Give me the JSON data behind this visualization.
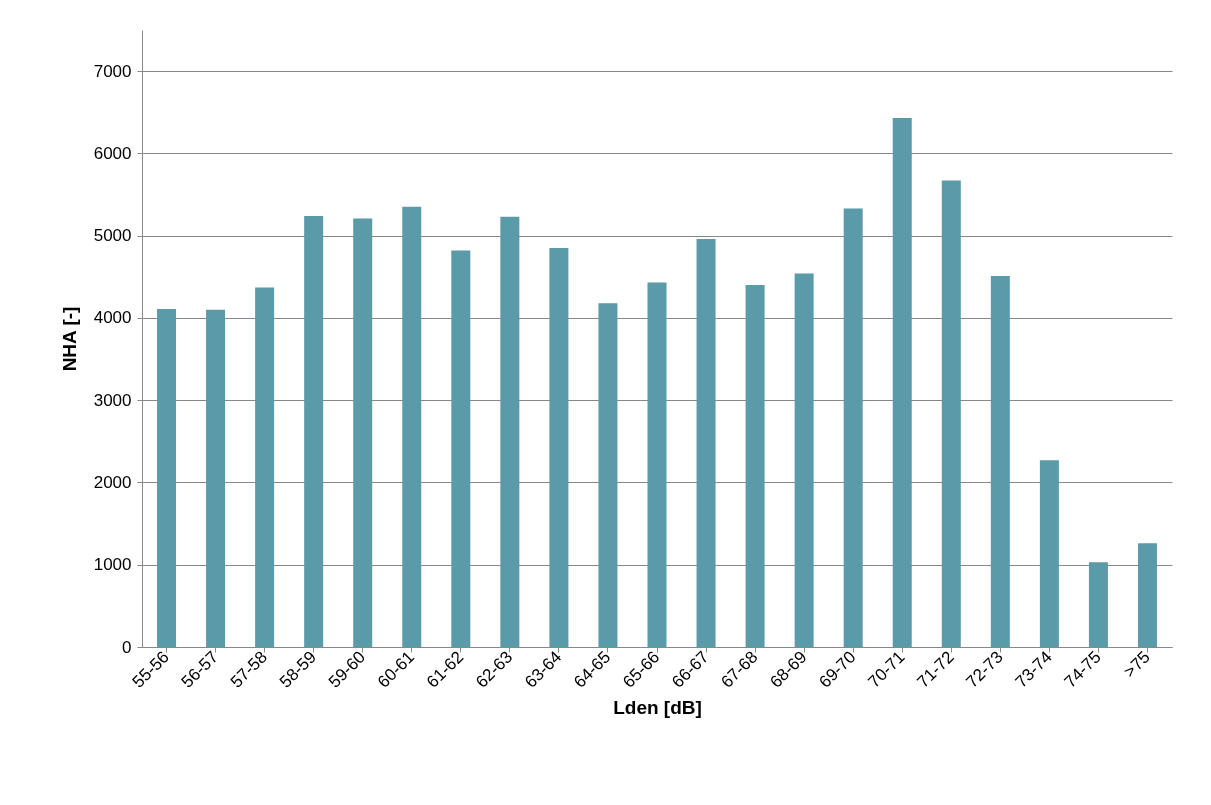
{
  "chart_data": {
    "type": "bar",
    "xlabel": "Lden [dB]",
    "ylabel": "NHA [-]",
    "categories": [
      "55-56",
      "56-57",
      "57-58",
      "58-59",
      "59-60",
      "60-61",
      "61-62",
      "62-63",
      "63-64",
      "64-65",
      "65-66",
      "66-67",
      "67-68",
      "68-69",
      "69-70",
      "70-71",
      "71-72",
      "72-73",
      "73-74",
      "74-75",
      ">75"
    ],
    "values": [
      4110,
      4100,
      4370,
      5240,
      5210,
      5350,
      4820,
      5230,
      4850,
      4180,
      4430,
      4960,
      4400,
      4540,
      5330,
      6430,
      5670,
      4510,
      2270,
      1030,
      1260
    ],
    "color": "#5b9aa9",
    "ylim": [
      0,
      7500
    ],
    "yticks": [
      0,
      1000,
      2000,
      3000,
      4000,
      5000,
      6000,
      7000
    ],
    "grid": "y"
  }
}
